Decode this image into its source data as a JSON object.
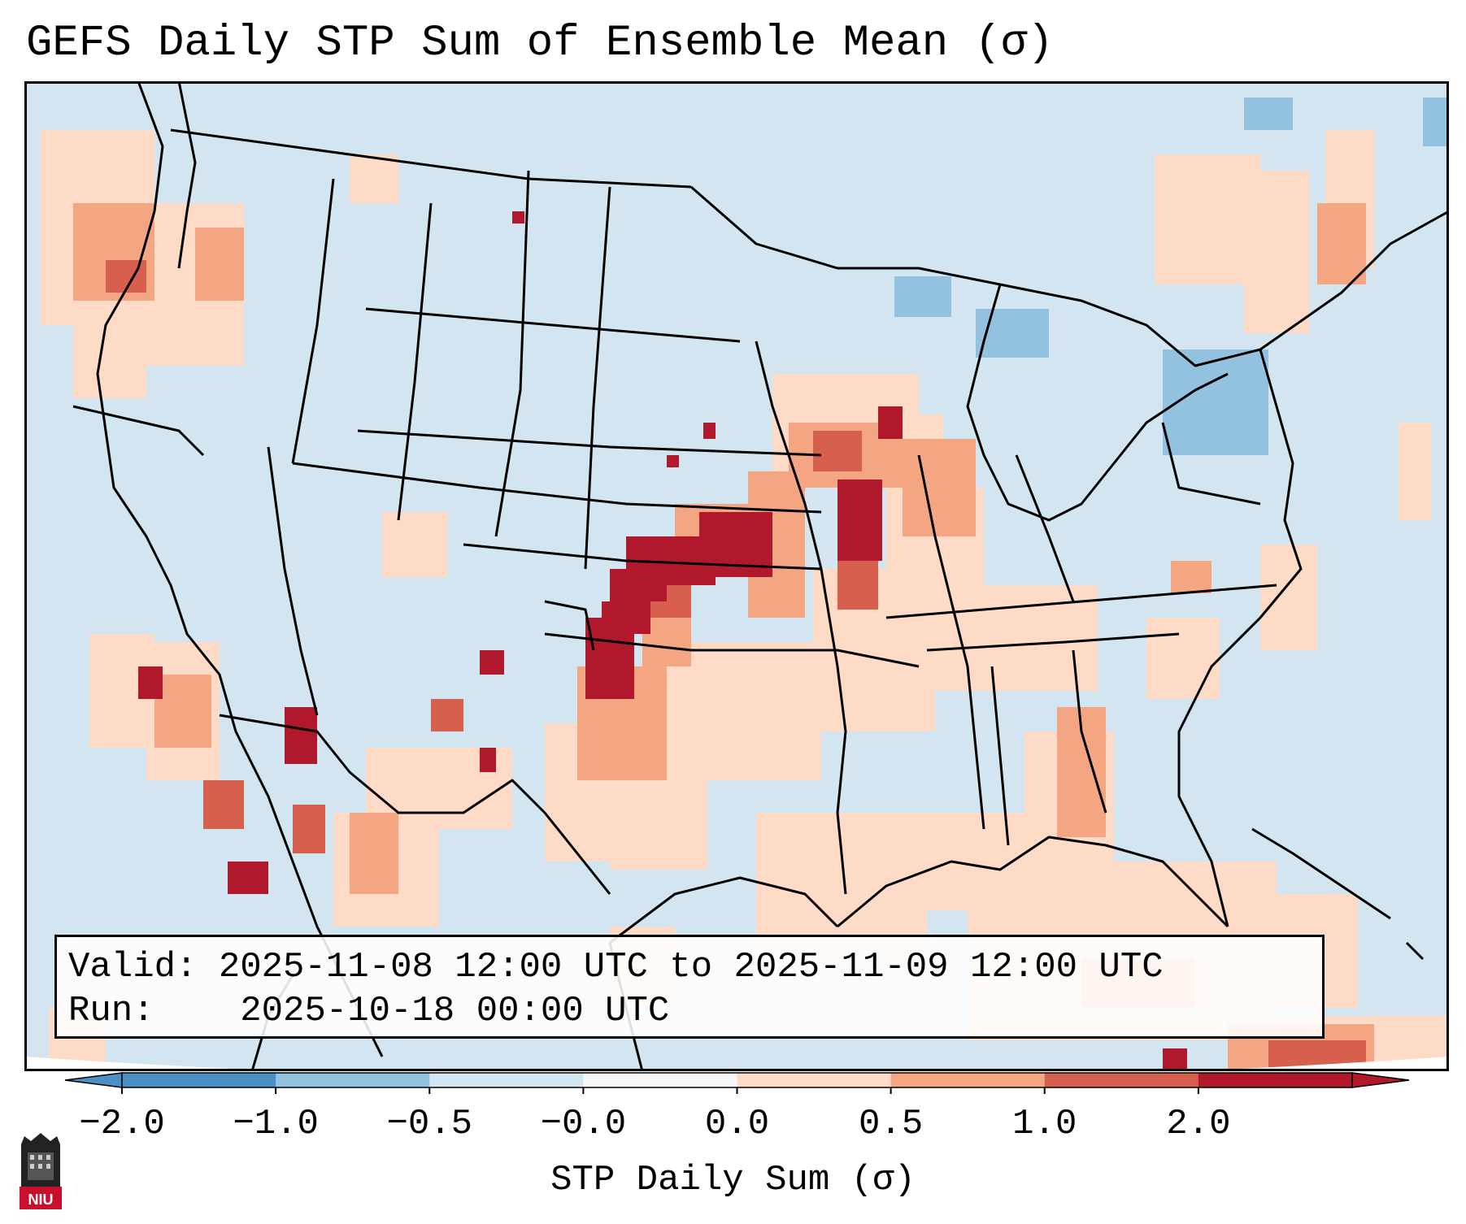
{
  "title": "GEFS Daily STP Sum of Ensemble Mean (σ)",
  "info": {
    "valid_label": "Valid:",
    "valid_value": "2025-11-08 12:00 UTC to 2025-11-09 12:00 UTC",
    "run_label": "Run:",
    "run_value": "2025-10-18 00:00 UTC"
  },
  "colorbar": {
    "label": "STP Daily Sum (σ)",
    "ticks": [
      "−2.0",
      "−1.0",
      "−0.5",
      "−0.0",
      "0.0",
      "0.5",
      "1.0",
      "2.0"
    ],
    "colors": [
      "#4a90c4",
      "#92c2df",
      "#d2e5f0",
      "#f7f7f7",
      "#fddbc7",
      "#f4a582",
      "#d6604d",
      "#b2182b"
    ],
    "extend": "both"
  },
  "map": {
    "background_color": "#d2e5f0",
    "coast_color": "#000000"
  },
  "logo": {
    "text": "NIU",
    "color": "#c8102e"
  }
}
